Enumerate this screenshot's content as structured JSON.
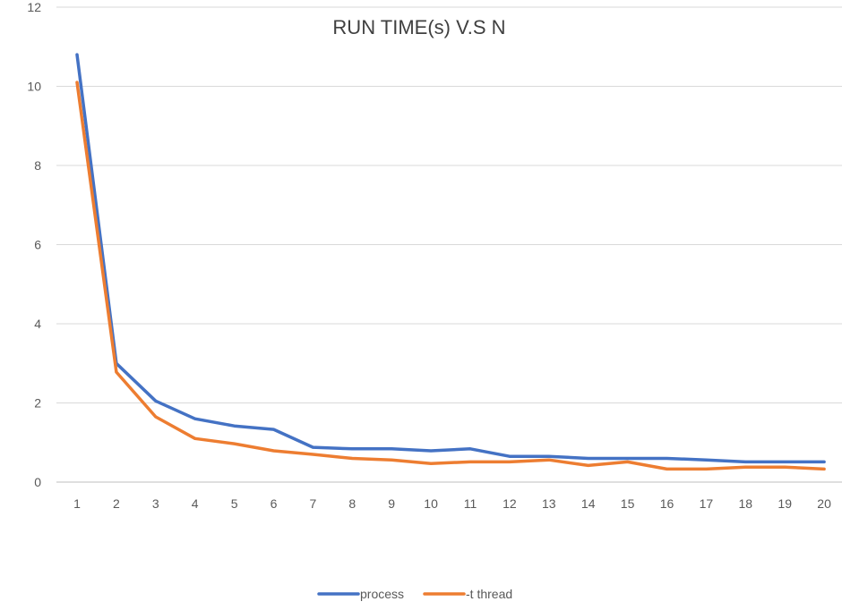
{
  "chart_data": {
    "type": "line",
    "title": "RUN TIME(s) V.S N",
    "xlabel": "",
    "ylabel": "",
    "categories": [
      "1",
      "2",
      "3",
      "4",
      "5",
      "6",
      "7",
      "8",
      "9",
      "10",
      "11",
      "12",
      "13",
      "14",
      "15",
      "16",
      "17",
      "18",
      "19",
      "20"
    ],
    "ylim": [
      0,
      12
    ],
    "yticks": [
      0,
      2,
      4,
      6,
      8,
      10,
      12
    ],
    "grid": true,
    "legend_position": "bottom",
    "series": [
      {
        "name": "process",
        "color": "#4472c4",
        "values": [
          10.8,
          3.0,
          2.05,
          1.6,
          1.42,
          1.33,
          0.88,
          0.84,
          0.84,
          0.79,
          0.84,
          0.65,
          0.65,
          0.6,
          0.6,
          0.6,
          0.56,
          0.51,
          0.51,
          0.51
        ]
      },
      {
        "name": "-t thread",
        "color": "#ed7d31",
        "values": [
          10.1,
          2.78,
          1.65,
          1.1,
          0.97,
          0.79,
          0.7,
          0.6,
          0.56,
          0.47,
          0.51,
          0.51,
          0.56,
          0.42,
          0.51,
          0.33,
          0.33,
          0.38,
          0.38,
          0.33
        ]
      }
    ]
  }
}
